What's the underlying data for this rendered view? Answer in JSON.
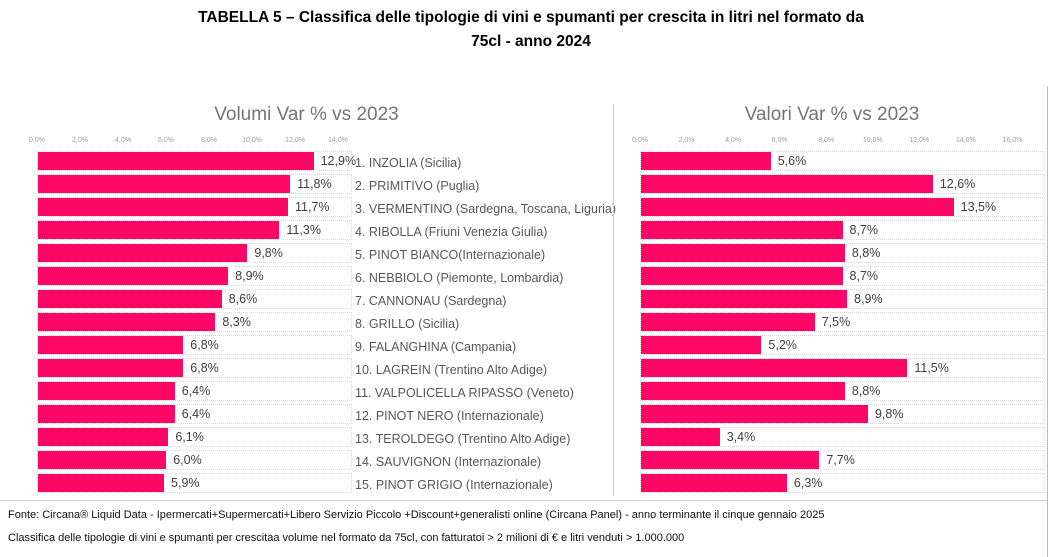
{
  "page_title_lines": [
    "TABELLA 5 – Classifica delle tipologie di vini e spumanti per crescita in litri nel formato da",
    "75cl - anno 2024"
  ],
  "colors": {
    "bar": "#fc0766",
    "chart_header": "#757575",
    "value_label": "#3f3f3f",
    "category_label": "#585858",
    "tick_label": "#9e9e9e"
  },
  "chart_data": {
    "type": "bar",
    "orientation": "horizontal",
    "legend": "none",
    "grid": "dotted row tracks",
    "categories": [
      "1. INZOLIA (Sicilia)",
      "2. PRIMITIVO (Puglia)",
      "3. VERMENTINO (Sardegna, Toscana, Liguria)",
      "4. RIBOLLA (Friuni Venezia Giulia)",
      "5. PINOT BIANCO(Internazionale)",
      "6. NEBBIOLO (Piemonte, Lombardia)",
      "7. CANNONAU (Sardegna)",
      "8. GRILLO (Sicilia)",
      "9. FALANGHINA (Campania)",
      "10. LAGREIN (Trentino Alto Adige)",
      "11. VALPOLICELLA RIPASSO (Veneto)",
      "12. PINOT NERO (Internazionale)",
      "13. TEROLDEGO (Trentino Alto Adige)",
      "14. SAUVIGNON (Internazionale)",
      "15. PINOT GRIGIO (Internazionale)"
    ],
    "series": [
      {
        "name": "Volumi Var % vs 2023",
        "values": [
          12.9,
          11.8,
          11.7,
          11.3,
          9.8,
          8.9,
          8.6,
          8.3,
          6.8,
          6.8,
          6.4,
          6.4,
          6.1,
          6.0,
          5.9
        ],
        "value_labels": [
          "12,9%",
          "11,8%",
          "11,7%",
          "11,3%",
          "9,8%",
          "8,9%",
          "8,6%",
          "8,3%",
          "6,8%",
          "6,8%",
          "6,4%",
          "6,4%",
          "6,1%",
          "6,0%",
          "5,9%"
        ],
        "tick_values": [
          0,
          2,
          4,
          6,
          8,
          10,
          12,
          14
        ],
        "tick_labels": [
          "0,0%",
          "2,0%",
          "4,0%",
          "6,0%",
          "8,0%",
          "10,0%",
          "12,0%",
          "14,0%"
        ],
        "axis_max": 14.65
      },
      {
        "name": "Valori Var % vs 2023",
        "values": [
          5.6,
          12.6,
          13.5,
          8.7,
          8.8,
          8.7,
          8.9,
          7.5,
          5.2,
          11.5,
          8.8,
          9.8,
          3.4,
          7.7,
          6.3
        ],
        "value_labels": [
          "5,6%",
          "12,6%",
          "13,5%",
          "8,7%",
          "8,8%",
          "8,7%",
          "8,9%",
          "7,5%",
          "5,2%",
          "11,5%",
          "8,8%",
          "9,8%",
          "3,4%",
          "7,7%",
          "6,3%"
        ],
        "tick_values": [
          0,
          2,
          4,
          6,
          8,
          10,
          12,
          14,
          16
        ],
        "tick_labels": [
          "0,0%",
          "2,0%",
          "4,0%",
          "6,0%",
          "8,0%",
          "10,0%",
          "12,0%",
          "14,0%",
          "16,0%"
        ],
        "axis_max": 17.4
      }
    ]
  },
  "footer": {
    "line1": "Fonte: Circana® Liquid Data - Ipermercati+Supermercati+Libero Servizio Piccolo +Discount+generalisti online (Circana Panel) - anno terminante il cinque gennaio 2025",
    "line2": "Classifica delle tipologie di vini e spumanti per crescitaa volume nel formato da 75cl, con fatturatoi > 2 milioni di € e litri venduti > 1.000.000"
  }
}
